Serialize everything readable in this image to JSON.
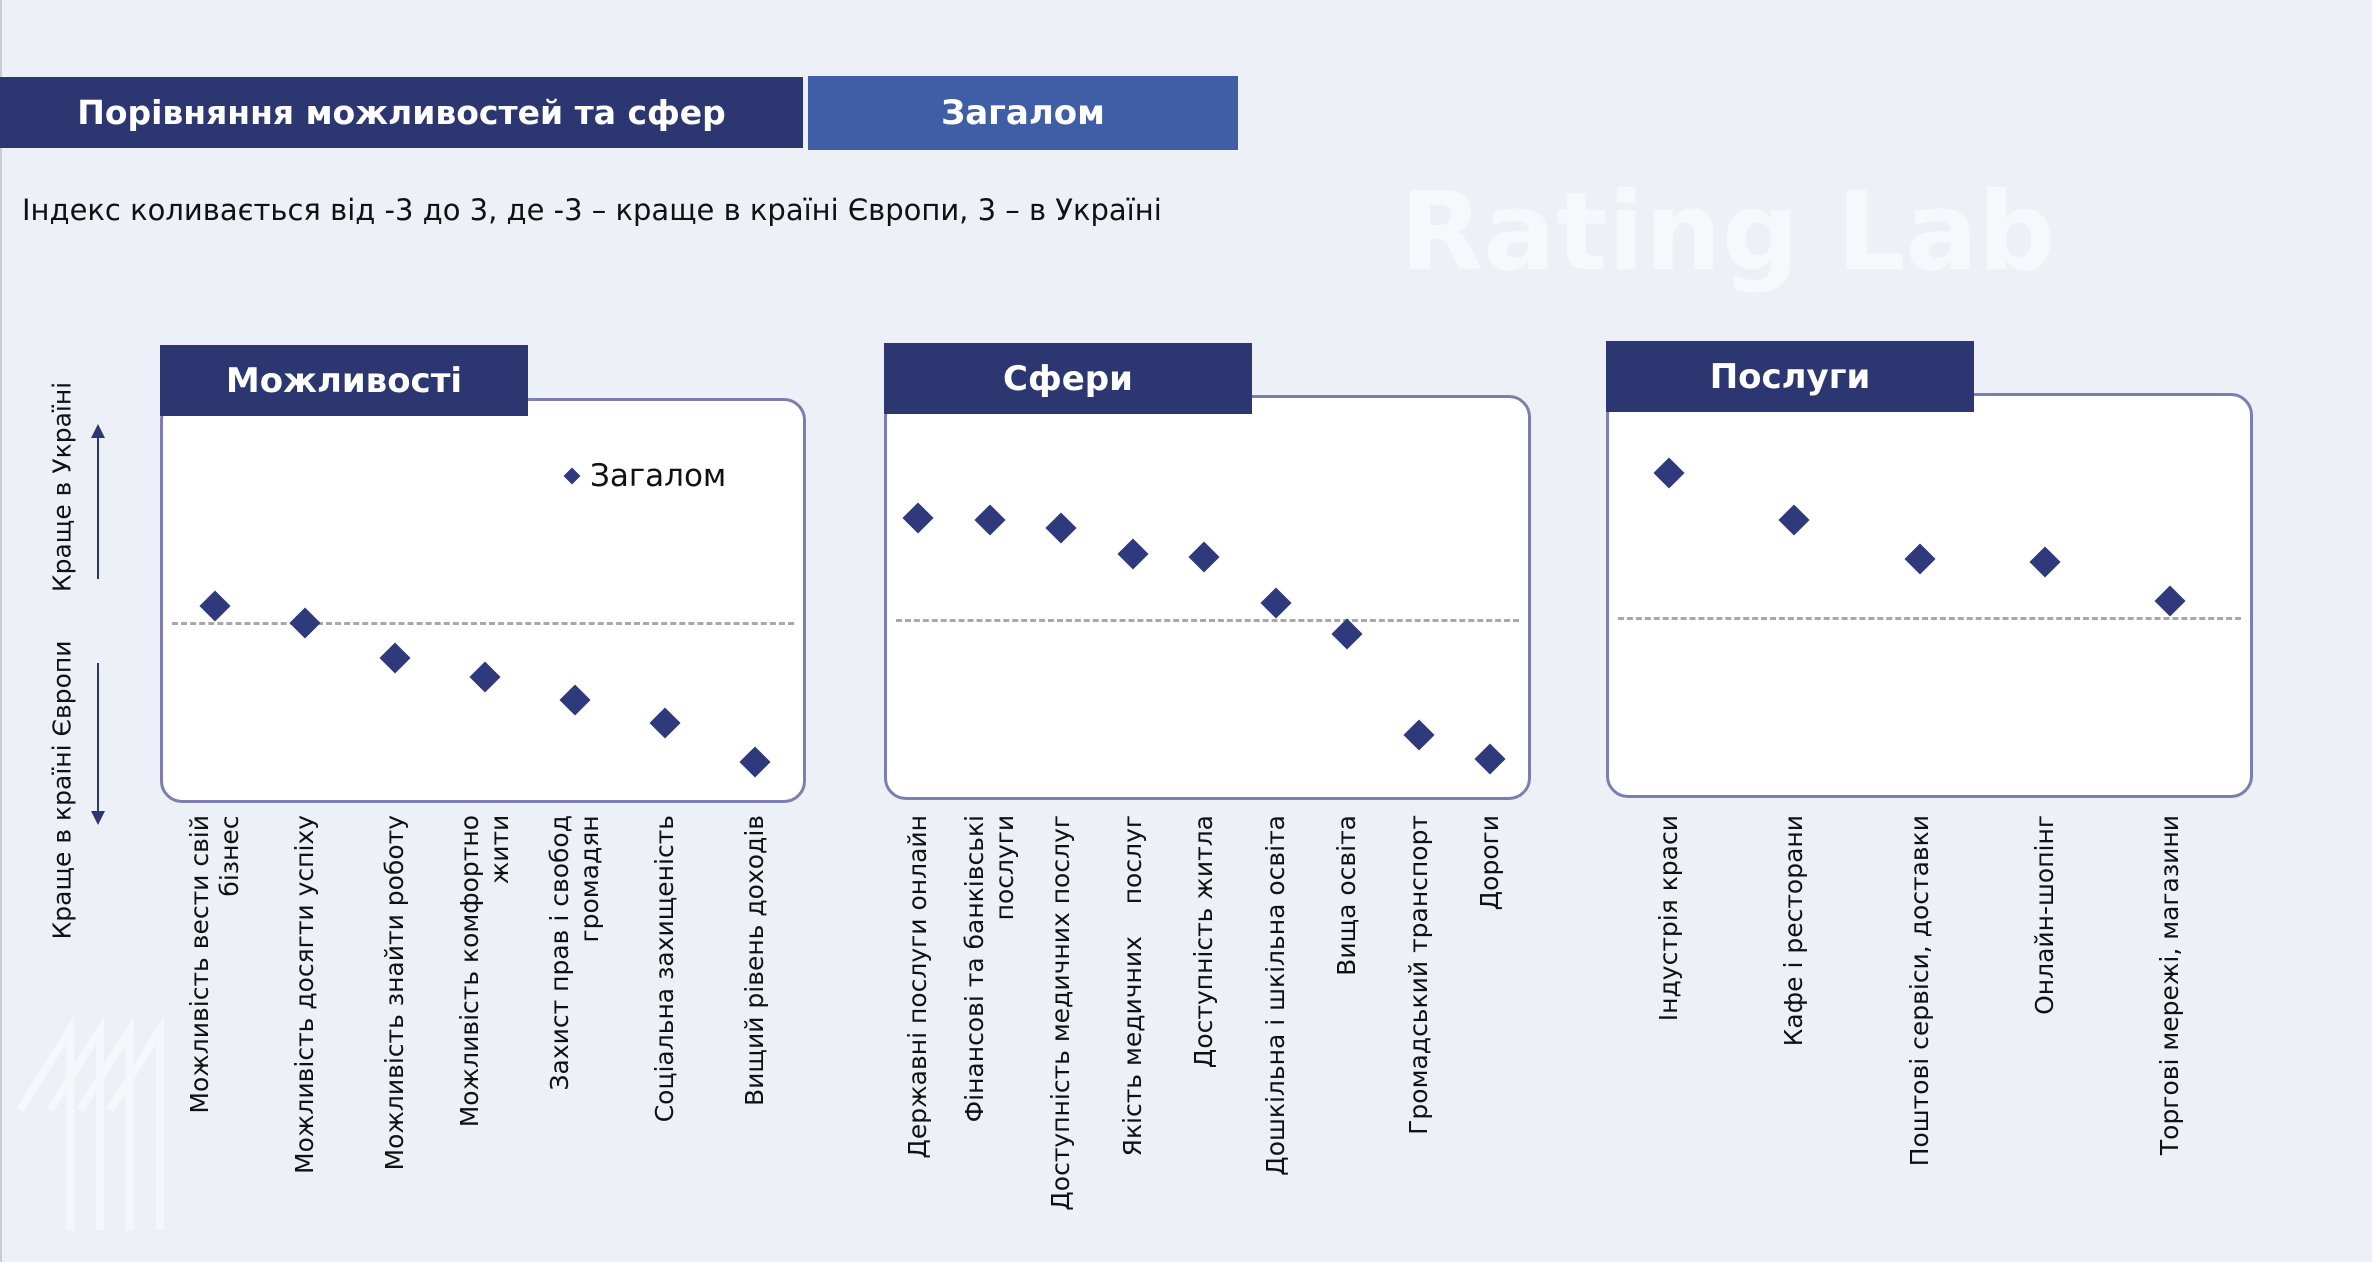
{
  "header": {
    "title": "Порівняння можливостей та сфер",
    "tab": "Загалом"
  },
  "subtitle": "Індекс коливається від -3 до 3, де -3 – краще в країні Європи, 3 – в Україні",
  "y_axis": {
    "up_label": "Краще в Україні",
    "down_label": "Краще в країні Європи"
  },
  "watermark": "Rating Lab",
  "colors": {
    "marker": "#2e3a7c",
    "header": "#2c3772",
    "tab": "#3f5ea5"
  },
  "chart_data": [
    {
      "type": "scatter",
      "title": "Можливості",
      "legend": "Загалом",
      "legend_position": "top-right",
      "ylim": [
        -3,
        3
      ],
      "reference_line": 0,
      "categories": [
        "Можливість вести свій\nбізнес",
        "Можливість досягти успіху",
        "Можливість знайти роботу",
        "Можливість комфортно\nжити",
        "Захист прав і свобод\nгромадян",
        "Соціальна захищеність",
        "Вищий рівень доходів"
      ],
      "values": [
        0.25,
        -0.02,
        -0.55,
        -0.85,
        -1.2,
        -1.55,
        -2.15
      ]
    },
    {
      "type": "scatter",
      "title": "Сфери",
      "ylim": [
        -3,
        3
      ],
      "reference_line": 0,
      "categories": [
        "Державні послуги онлайн",
        "Фінансові та банківські\nпослуги",
        "Доступність медичних послуг",
        "Якість медичних    послуг",
        "Доступність житла",
        "Дошкільна і шкільна освіта",
        "Вища освіта",
        "Громадський транспорт",
        "Дороги"
      ],
      "values": [
        1.55,
        1.52,
        1.4,
        1.0,
        0.95,
        0.25,
        -0.23,
        -1.78,
        -2.15
      ]
    },
    {
      "type": "scatter",
      "title": "Послуги",
      "ylim": [
        -3,
        3
      ],
      "reference_line": 0,
      "categories": [
        "Індустрія краси",
        "Кафе і ресторани",
        "Поштові сервіси, доставки",
        "Онлайн-шопінг",
        "Торгові мережі, магазини"
      ],
      "values": [
        2.22,
        1.5,
        0.9,
        0.85,
        0.25
      ]
    }
  ]
}
